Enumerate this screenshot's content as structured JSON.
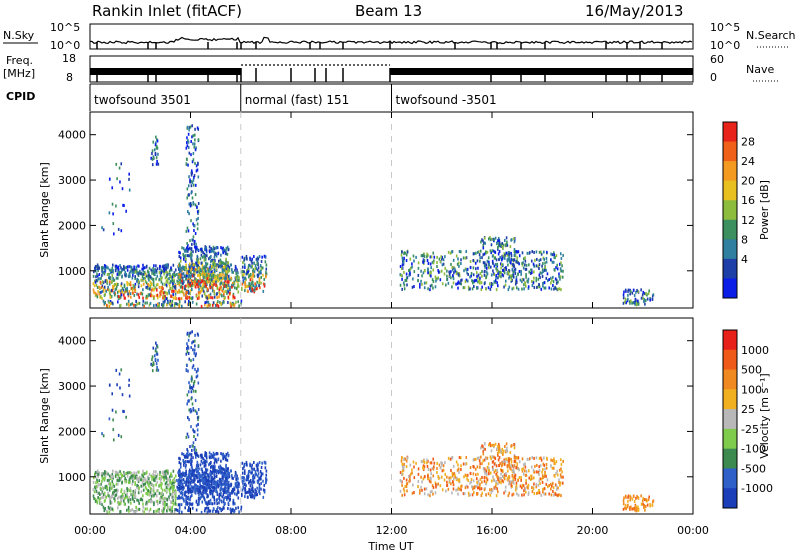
{
  "header": {
    "station": "Rankin Inlet (fitACF)",
    "beam": "Beam 13",
    "date": "16/May/2013"
  },
  "noise_panel": {
    "left_label": "N.Sky",
    "right_label": "N.Search",
    "tick_top": "10^5",
    "tick_bottom": "10^0"
  },
  "freq_panel": {
    "left_label_1": "Freq.",
    "left_label_2": "[MHz]",
    "left_tick_top": "18",
    "left_tick_bottom": "8",
    "right_label": "Nave",
    "right_tick_top": "60",
    "right_tick_bottom": "0"
  },
  "cpid": {
    "label": "CPID",
    "segments": [
      {
        "name": "twofsound 3501",
        "start": 0.0,
        "end": 6.0
      },
      {
        "name": "normal (fast) 151",
        "start": 6.0,
        "end": 12.0
      },
      {
        "name": "twofsound -3501",
        "start": 12.0,
        "end": 24.0
      }
    ]
  },
  "xaxis": {
    "label": "Time UT",
    "ticks": [
      "00:00",
      "04:00",
      "08:00",
      "12:00",
      "16:00",
      "20:00",
      "00:00"
    ],
    "range_hours": [
      0,
      24
    ]
  },
  "chart_data": [
    {
      "type": "heatmap",
      "parameter": "Power",
      "ylabel": "Slant Range [km]",
      "ylim": [
        180,
        4500
      ],
      "yticks": [
        "1000",
        "2000",
        "3000",
        "4000"
      ],
      "yticks_values": [
        1000,
        2000,
        3000,
        4000
      ],
      "colorbar_label": "Power [dB]",
      "colorbar_ticks": [
        "28",
        "24",
        "20",
        "16",
        "12",
        "8",
        "4"
      ],
      "colors": [
        "#0a1ee8",
        "#1f3fa8",
        "#2f7fa0",
        "#3c9060",
        "#8dbb3c",
        "#e8c020",
        "#f59a20",
        "#f06018",
        "#e8231a"
      ]
    },
    {
      "type": "heatmap",
      "parameter": "Velocity",
      "ylabel": "Slant Range [km]",
      "ylim": [
        180,
        4500
      ],
      "yticks": [
        "1000",
        "2000",
        "3000",
        "4000"
      ],
      "yticks_values": [
        1000,
        2000,
        3000,
        4000
      ],
      "colorbar_label": "Velocity [m s⁻¹]",
      "colorbar_ticks": [
        "1000",
        "500",
        "100",
        "25",
        "-25",
        "-100",
        "-500",
        "-1000"
      ],
      "colors": [
        "#1a3fb8",
        "#2f5fc8",
        "#3c8a50",
        "#7fcc4c",
        "#b8b8b8",
        "#f0b020",
        "#f08a20",
        "#f05a18",
        "#e8201a"
      ]
    }
  ]
}
